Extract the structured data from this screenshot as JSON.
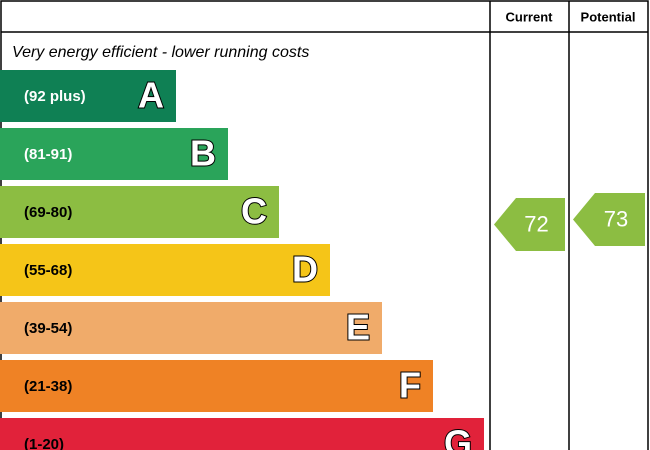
{
  "header": {
    "current": "Current",
    "potential": "Potential"
  },
  "subtitle": "Very energy efficient - lower running costs",
  "bands": [
    {
      "range": "(92 plus)",
      "letter": "A"
    },
    {
      "range": "(81-91)",
      "letter": "B"
    },
    {
      "range": "(69-80)",
      "letter": "C"
    },
    {
      "range": "(55-68)",
      "letter": "D"
    },
    {
      "range": "(39-54)",
      "letter": "E"
    },
    {
      "range": "(21-38)",
      "letter": "F"
    },
    {
      "range": "(1-20)",
      "letter": "G"
    }
  ],
  "current": 72,
  "potential": 73
}
